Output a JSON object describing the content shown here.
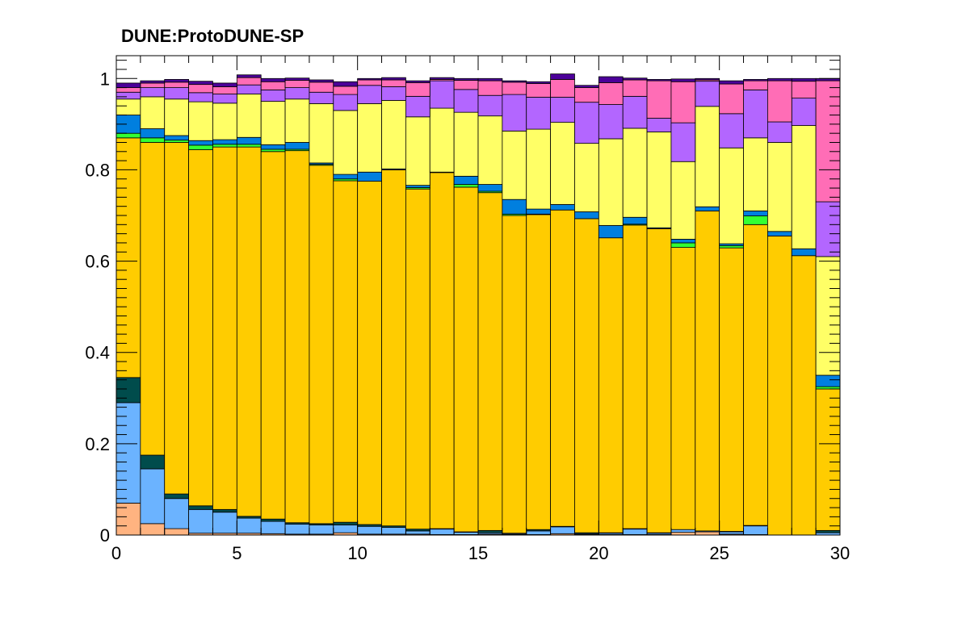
{
  "chart_data": {
    "type": "bar",
    "stacked": true,
    "normalized": true,
    "title": "DUNE:ProtoDUNE-SP",
    "xlabel": "",
    "ylabel": "",
    "xlim": [
      0,
      30
    ],
    "ylim": [
      0,
      1.05
    ],
    "bin_edges": [
      0,
      1,
      2,
      3,
      4,
      5,
      6,
      7,
      8,
      9,
      10,
      11,
      12,
      13,
      14,
      15,
      16,
      17,
      18,
      19,
      20,
      21,
      22,
      23,
      24,
      25,
      26,
      27,
      28,
      29,
      30
    ],
    "x_ticks": [
      0,
      5,
      10,
      15,
      20,
      25,
      30
    ],
    "y_ticks": [
      0,
      0.2,
      0.4,
      0.6,
      0.8,
      1
    ],
    "y_tick_labels": [
      "0",
      "0.2",
      "0.4",
      "0.6",
      "0.8",
      "1"
    ],
    "grid": false,
    "series": [
      {
        "color": "#ffb380",
        "values": [
          0.07,
          0.025,
          0.014,
          0.004,
          0.004,
          0.004,
          0.003,
          0.002,
          0.002,
          0.005,
          0.002,
          0.002,
          0.002,
          0.001,
          0.001,
          0.002,
          0.001,
          0.001,
          0.003,
          0.001,
          0.001,
          0.001,
          0.001,
          0.006,
          0.007,
          0.002,
          0.001,
          0,
          0,
          0
        ]
      },
      {
        "color": "#6bb3ff",
        "values": [
          0.22,
          0.12,
          0.066,
          0.052,
          0.046,
          0.033,
          0.027,
          0.022,
          0.02,
          0.017,
          0.017,
          0.015,
          0.007,
          0.012,
          0.005,
          0.003,
          0.002,
          0.008,
          0.015,
          0.002,
          0.003,
          0.012,
          0.003,
          0.006,
          0.002,
          0.005,
          0.019,
          0,
          0,
          0.005
        ]
      },
      {
        "color": "#004c4c",
        "values": [
          0.055,
          0.03,
          0.01,
          0.008,
          0.006,
          0.004,
          0.005,
          0.003,
          0.003,
          0.006,
          0.004,
          0.003,
          0.004,
          0.001,
          0.001,
          0.005,
          0.001,
          0.003,
          0.001,
          0.002,
          0.001,
          0.001,
          0.001,
          0,
          0,
          0.001,
          0.001,
          0,
          0,
          0.005
        ]
      },
      {
        "color": "#ffcc00",
        "values": [
          0.525,
          0.685,
          0.77,
          0.78,
          0.794,
          0.809,
          0.805,
          0.815,
          0.785,
          0.748,
          0.752,
          0.78,
          0.745,
          0.78,
          0.755,
          0.74,
          0.696,
          0.69,
          0.693,
          0.688,
          0.646,
          0.665,
          0.666,
          0.618,
          0.701,
          0.621,
          0.659,
          0.655,
          0.612,
          0.31
        ]
      },
      {
        "color": "#33ff33",
        "values": [
          0.01,
          0.01,
          0.005,
          0.01,
          0.006,
          0.006,
          0.005,
          0.003,
          0.002,
          0.004,
          0,
          0,
          0.003,
          0,
          0.006,
          0.003,
          0.003,
          0.001,
          0,
          0,
          0,
          0.002,
          0,
          0.01,
          0,
          0.005,
          0.019,
          0,
          0,
          0.005
        ]
      },
      {
        "color": "#007fdf",
        "values": [
          0.04,
          0.02,
          0.01,
          0.01,
          0.01,
          0.015,
          0.01,
          0.015,
          0.003,
          0.01,
          0.02,
          0.002,
          0.005,
          0.001,
          0.018,
          0.015,
          0.032,
          0.011,
          0.012,
          0.015,
          0.027,
          0.015,
          0.002,
          0.008,
          0.009,
          0.004,
          0.011,
          0.01,
          0.015,
          0.025
        ]
      },
      {
        "color": "#ffff66",
        "values": [
          0.035,
          0.07,
          0.08,
          0.085,
          0.08,
          0.095,
          0.095,
          0.095,
          0.13,
          0.14,
          0.15,
          0.15,
          0.15,
          0.14,
          0.14,
          0.15,
          0.15,
          0.175,
          0.18,
          0.15,
          0.19,
          0.195,
          0.21,
          0.17,
          0.22,
          0.21,
          0.16,
          0.195,
          0.27,
          0.26
        ]
      },
      {
        "color": "#b366ff",
        "values": [
          0.015,
          0.02,
          0.025,
          0.02,
          0.02,
          0.02,
          0.025,
          0.025,
          0.025,
          0.035,
          0.04,
          0.03,
          0.045,
          0.06,
          0.05,
          0.045,
          0.08,
          0.07,
          0.055,
          0.09,
          0.075,
          0.07,
          0.03,
          0.085,
          0.055,
          0.075,
          0.105,
          0.045,
          0.06,
          0.12
        ]
      },
      {
        "color": "#ff6db6",
        "values": [
          0.01,
          0.01,
          0.012,
          0.018,
          0.016,
          0.016,
          0.018,
          0.016,
          0.022,
          0.018,
          0.012,
          0.015,
          0.03,
          0.003,
          0.02,
          0.032,
          0.027,
          0.03,
          0.039,
          0.032,
          0.048,
          0.036,
          0.082,
          0.09,
          0.003,
          0.065,
          0.02,
          0.09,
          0.037,
          0.265
        ]
      },
      {
        "color": "#4c0099",
        "values": [
          0.01,
          0.005,
          0.006,
          0.007,
          0.008,
          0.006,
          0.007,
          0.005,
          0.005,
          0.01,
          0.003,
          0.005,
          0.004,
          0.004,
          0.004,
          0.005,
          0.003,
          0.004,
          0.012,
          0.005,
          0.013,
          0.004,
          0.003,
          0.006,
          0.003,
          0.007,
          0.003,
          0.005,
          0.006,
          0.005
        ]
      }
    ]
  }
}
